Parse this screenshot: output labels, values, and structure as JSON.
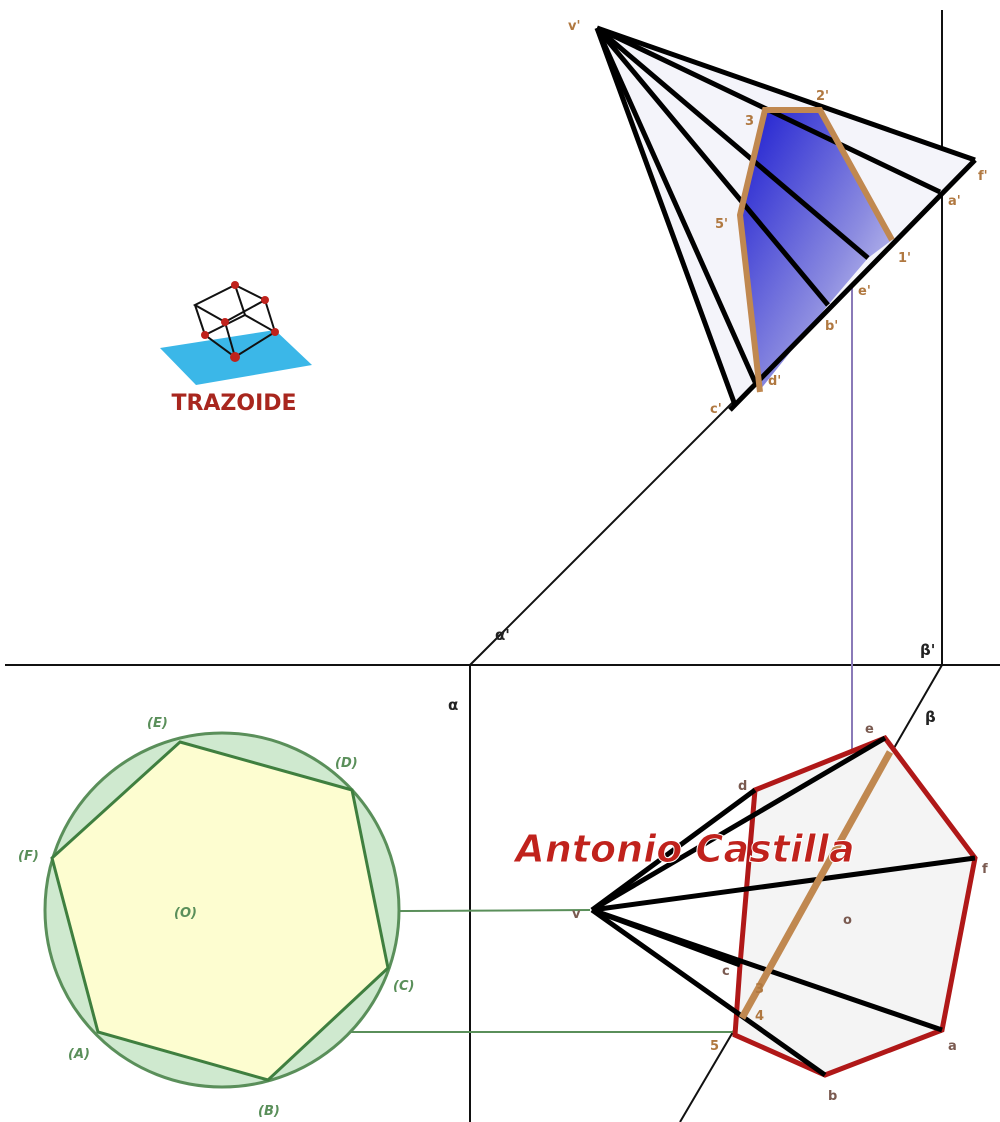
{
  "logo": {
    "text": "TRAZOIDE"
  },
  "author": "Antonio Castilla",
  "traces": {
    "alpha_vertical": "α'",
    "alpha_horizontal": "α",
    "beta_vertical": "β'",
    "beta_horizontal": "β"
  },
  "elevation_labels": [
    "v'",
    "2'",
    "3",
    "1'",
    "5'",
    "f'",
    "a'",
    "e'",
    "b'",
    "d'",
    "c'"
  ],
  "true_size_labels": [
    "(E)",
    "(D)",
    "(F)",
    "(O)",
    "(C)",
    "(A)",
    "(B)"
  ],
  "plan_labels": [
    "v",
    "e",
    "d",
    "f",
    "a",
    "b",
    "c",
    "3",
    "4",
    "5",
    "o"
  ]
}
